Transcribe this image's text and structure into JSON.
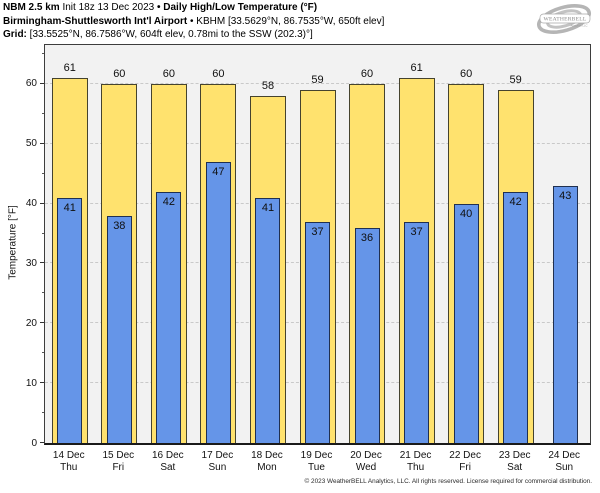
{
  "header": {
    "l1_model": "NBM 2.5 km",
    "l1_init": " Init 18z 13 Dec 2023 ",
    "l1_title": "• Daily High/Low Temperature (°F)",
    "l2_station": "Birmingham-Shuttlesworth Int'l Airport",
    "l2_meta": " • KBHM [33.5629°N, 86.7535°W, 650ft elev]",
    "l3_label": "Grid:",
    "l3_value": " [33.5525°N, 86.7586°W, 604ft elev, 0.78mi to the SSW (202.3)°]"
  },
  "logo": {
    "name": "WEATHERBELL",
    "sub": "Analytics LLC"
  },
  "chart_data": {
    "type": "bar",
    "title": "Daily High/Low Temperature (°F)",
    "ylabel": "Temperature [°F]",
    "ylim": [
      0,
      66.5
    ],
    "yticks": [
      0,
      10,
      20,
      30,
      40,
      50,
      60
    ],
    "grid": "horizontal dashed",
    "plot_bg": "#f2f2f2",
    "categories": [
      [
        "14 Dec",
        "Thu"
      ],
      [
        "15 Dec",
        "Fri"
      ],
      [
        "16 Dec",
        "Sat"
      ],
      [
        "17 Dec",
        "Sun"
      ],
      [
        "18 Dec",
        "Mon"
      ],
      [
        "19 Dec",
        "Tue"
      ],
      [
        "20 Dec",
        "Wed"
      ],
      [
        "21 Dec",
        "Thu"
      ],
      [
        "22 Dec",
        "Fri"
      ],
      [
        "23 Dec",
        "Sat"
      ],
      [
        "24 Dec",
        "Sun"
      ]
    ],
    "series": [
      {
        "name": "Daily High",
        "color": "#ffe26e",
        "values": [
          61,
          60,
          60,
          60,
          58,
          59,
          60,
          61,
          60,
          59,
          null
        ]
      },
      {
        "name": "Daily Low",
        "color": "#6595e8",
        "values": [
          41,
          38,
          42,
          47,
          41,
          37,
          36,
          37,
          40,
          42,
          43
        ]
      }
    ]
  },
  "footer": {
    "copyright": "© 2023 WeatherBELL Analytics, LLC. All rights reserved. License required for commercial distribution."
  }
}
